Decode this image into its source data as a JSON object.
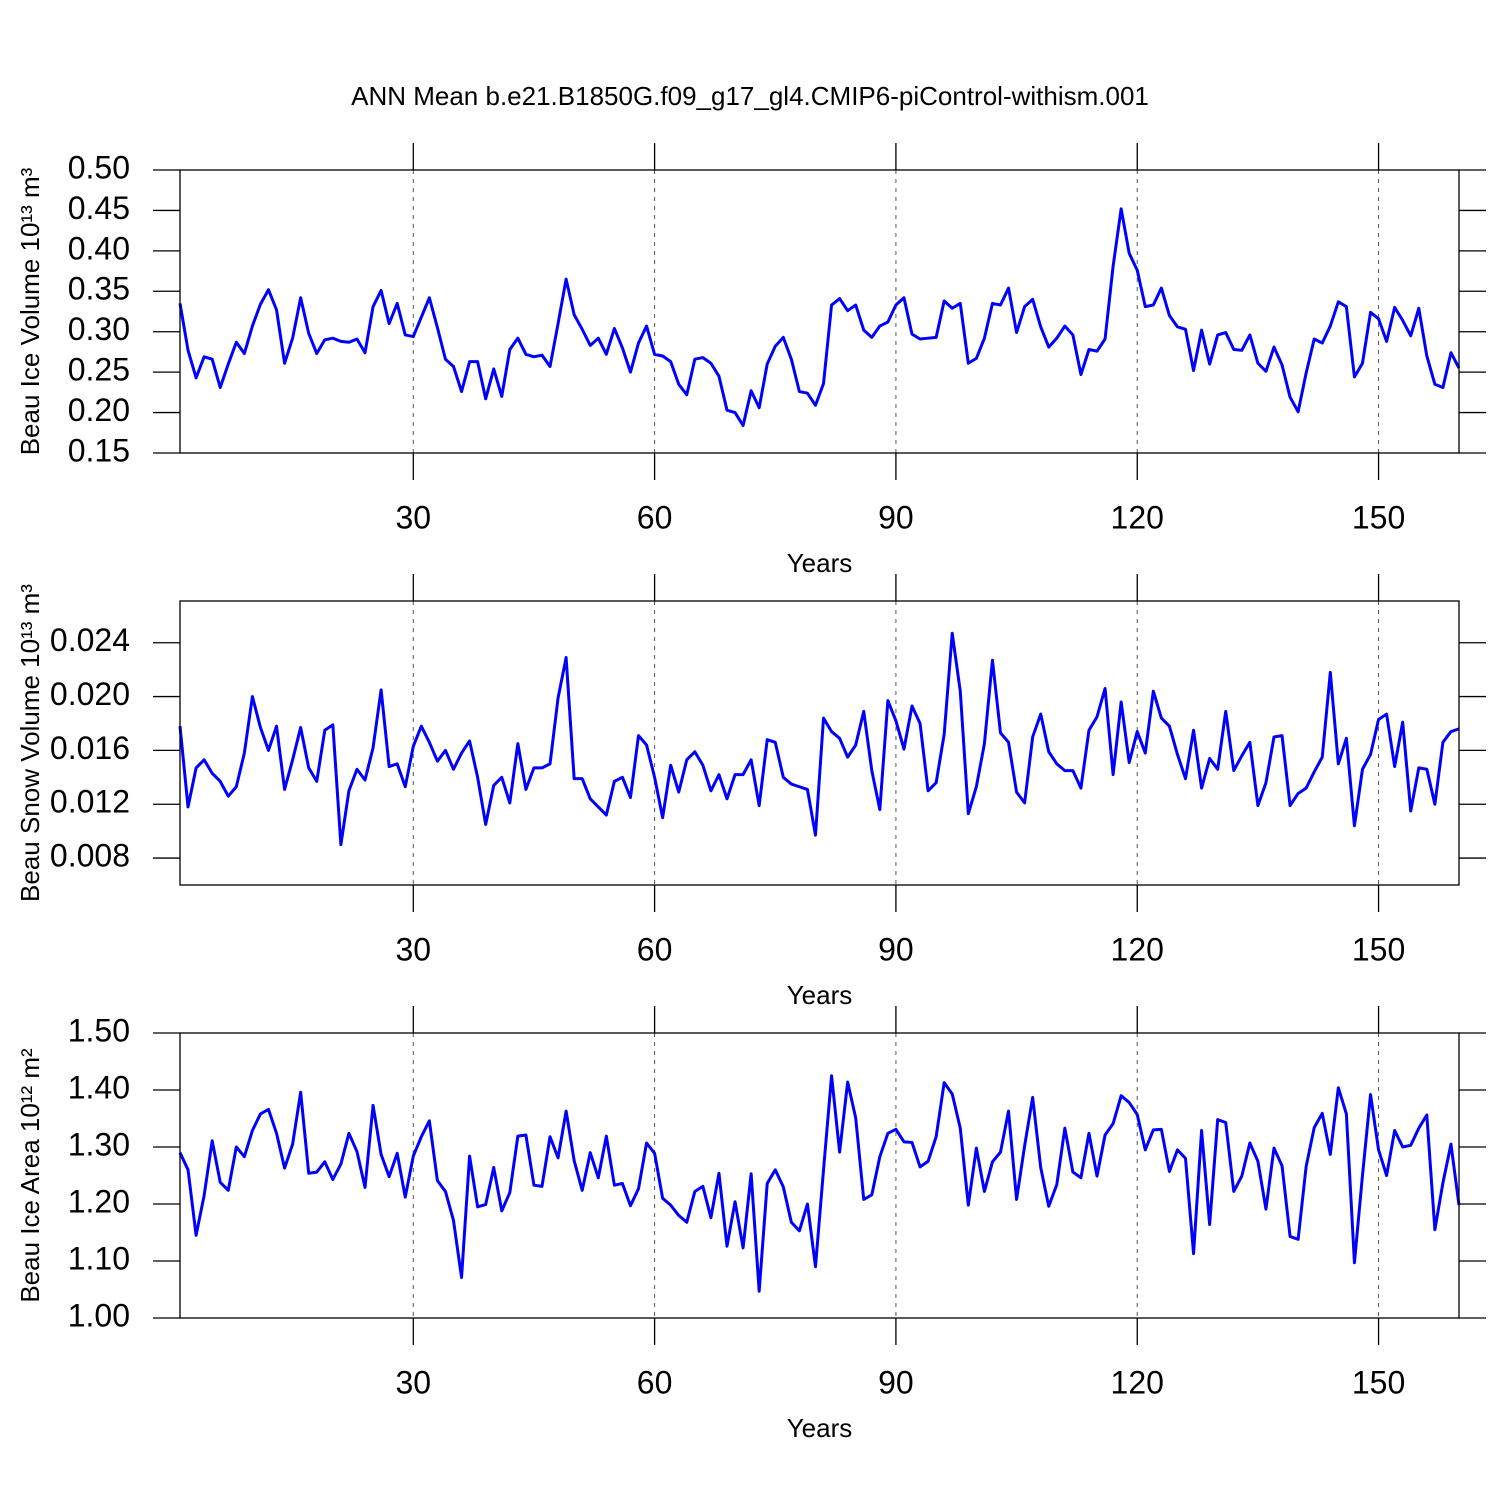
{
  "title": "ANN Mean b.e21.B1850G.f09_g17_gl4.CMIP6-piControl-withism.001",
  "chart_data": [
    {
      "type": "line",
      "ylabel": "Beau Ice Volume 10¹³ m³",
      "xlabel": "Years",
      "color": "#0000ff",
      "xlim": [
        1,
        160
      ],
      "xticks": [
        30,
        60,
        90,
        120,
        150
      ],
      "grid": true,
      "ylim": [
        0.15,
        0.5
      ],
      "yticks": [
        0.15,
        {
          "value": 0.2,
          "label": "0.20"
        },
        0.25,
        {
          "value": 0.3,
          "label": "0.30"
        },
        0.35,
        {
          "value": 0.4,
          "label": "0.40"
        },
        0.45,
        {
          "value": 0.5,
          "label": "0.50"
        }
      ],
      "x": [
        1,
        2,
        3,
        4,
        5,
        6,
        7,
        8,
        9,
        10,
        11,
        12,
        13,
        14,
        15,
        16,
        17,
        18,
        19,
        20,
        21,
        22,
        23,
        24,
        25,
        26,
        27,
        28,
        29,
        30,
        31,
        32,
        33,
        34,
        35,
        36,
        37,
        38,
        39,
        40,
        41,
        42,
        43,
        44,
        45,
        46,
        47,
        48,
        49,
        50,
        51,
        52,
        53,
        54,
        55,
        56,
        57,
        58,
        59,
        60,
        61,
        62,
        63,
        64,
        65,
        66,
        67,
        68,
        69,
        70,
        71,
        72,
        73,
        74,
        75,
        76,
        77,
        78,
        79,
        80,
        81,
        82,
        83,
        84,
        85,
        86,
        87,
        88,
        89,
        90,
        91,
        92,
        93,
        94,
        95,
        96,
        97,
        98,
        99,
        100,
        101,
        102,
        103,
        104,
        105,
        106,
        107,
        108,
        109,
        110,
        111,
        112,
        113,
        114,
        115,
        116,
        117,
        118,
        119,
        120,
        121,
        122,
        123,
        124,
        125,
        126,
        127,
        128,
        129,
        130,
        131,
        132,
        133,
        134,
        135,
        136,
        137,
        138,
        139,
        140,
        141,
        142,
        143,
        144,
        145,
        146,
        147,
        148,
        149,
        150,
        151,
        152,
        153,
        154,
        155,
        156,
        157,
        158,
        159,
        160
      ],
      "values": [
        0.335,
        0.277,
        0.243,
        0.269,
        0.266,
        0.231,
        0.26,
        0.287,
        0.273,
        0.307,
        0.334,
        0.352,
        0.327,
        0.261,
        0.292,
        0.342,
        0.298,
        0.273,
        0.29,
        0.292,
        0.288,
        0.287,
        0.291,
        0.274,
        0.331,
        0.351,
        0.31,
        0.335,
        0.296,
        0.294,
        0.318,
        0.342,
        0.305,
        0.266,
        0.257,
        0.226,
        0.263,
        0.263,
        0.217,
        0.254,
        0.22,
        0.278,
        0.292,
        0.272,
        0.269,
        0.271,
        0.257,
        0.31,
        0.365,
        0.321,
        0.303,
        0.283,
        0.292,
        0.272,
        0.304,
        0.28,
        0.25,
        0.286,
        0.307,
        0.272,
        0.27,
        0.263,
        0.235,
        0.222,
        0.266,
        0.268,
        0.261,
        0.245,
        0.203,
        0.2,
        0.184,
        0.227,
        0.206,
        0.26,
        0.282,
        0.293,
        0.266,
        0.226,
        0.224,
        0.209,
        0.236,
        0.333,
        0.341,
        0.326,
        0.333,
        0.302,
        0.293,
        0.307,
        0.312,
        0.333,
        0.342,
        0.297,
        0.291,
        0.292,
        0.293,
        0.338,
        0.329,
        0.335,
        0.261,
        0.267,
        0.292,
        0.335,
        0.333,
        0.354,
        0.299,
        0.331,
        0.34,
        0.306,
        0.281,
        0.292,
        0.307,
        0.296,
        0.247,
        0.278,
        0.276,
        0.291,
        0.381,
        0.452,
        0.397,
        0.376,
        0.331,
        0.333,
        0.354,
        0.32,
        0.306,
        0.303,
        0.252,
        0.302,
        0.26,
        0.296,
        0.299,
        0.278,
        0.277,
        0.296,
        0.261,
        0.251,
        0.281,
        0.259,
        0.219,
        0.201,
        0.249,
        0.291,
        0.286,
        0.307,
        0.337,
        0.331,
        0.244,
        0.261,
        0.324,
        0.316,
        0.288,
        0.33,
        0.314,
        0.295,
        0.329,
        0.27,
        0.235,
        0.231,
        0.274,
        0.255
      ]
    },
    {
      "type": "line",
      "ylabel": "Beau Snow Volume 10¹³ m³",
      "xlabel": "Years",
      "color": "#0000ff",
      "xlim": [
        1,
        160
      ],
      "xticks": [
        30,
        60,
        90,
        120,
        150
      ],
      "grid": true,
      "ylim": [
        0.006,
        0.0271
      ],
      "yticks": [
        0.008,
        0.012,
        0.016,
        {
          "value": 0.02,
          "label": "0.020"
        },
        0.024
      ],
      "x": [
        1,
        2,
        3,
        4,
        5,
        6,
        7,
        8,
        9,
        10,
        11,
        12,
        13,
        14,
        15,
        16,
        17,
        18,
        19,
        20,
        21,
        22,
        23,
        24,
        25,
        26,
        27,
        28,
        29,
        30,
        31,
        32,
        33,
        34,
        35,
        36,
        37,
        38,
        39,
        40,
        41,
        42,
        43,
        44,
        45,
        46,
        47,
        48,
        49,
        50,
        51,
        52,
        53,
        54,
        55,
        56,
        57,
        58,
        59,
        60,
        61,
        62,
        63,
        64,
        65,
        66,
        67,
        68,
        69,
        70,
        71,
        72,
        73,
        74,
        75,
        76,
        77,
        78,
        79,
        80,
        81,
        82,
        83,
        84,
        85,
        86,
        87,
        88,
        89,
        90,
        91,
        92,
        93,
        94,
        95,
        96,
        97,
        98,
        99,
        100,
        101,
        102,
        103,
        104,
        105,
        106,
        107,
        108,
        109,
        110,
        111,
        112,
        113,
        114,
        115,
        116,
        117,
        118,
        119,
        120,
        121,
        122,
        123,
        124,
        125,
        126,
        127,
        128,
        129,
        130,
        131,
        132,
        133,
        134,
        135,
        136,
        137,
        138,
        139,
        140,
        141,
        142,
        143,
        144,
        145,
        146,
        147,
        148,
        149,
        150,
        151,
        152,
        153,
        154,
        155,
        156,
        157,
        158,
        159,
        160
      ],
      "values": [
        0.0178,
        0.0118,
        0.0147,
        0.0153,
        0.0143,
        0.0137,
        0.0126,
        0.0133,
        0.0158,
        0.02,
        0.0177,
        0.016,
        0.0178,
        0.0131,
        0.0153,
        0.0177,
        0.0147,
        0.0137,
        0.0175,
        0.0179,
        0.009,
        0.013,
        0.0146,
        0.0138,
        0.0162,
        0.0205,
        0.0148,
        0.015,
        0.0133,
        0.0163,
        0.0178,
        0.0166,
        0.0152,
        0.016,
        0.0146,
        0.0158,
        0.0167,
        0.014,
        0.0105,
        0.0134,
        0.014,
        0.0121,
        0.0165,
        0.0131,
        0.0147,
        0.0147,
        0.015,
        0.0199,
        0.0229,
        0.0139,
        0.0139,
        0.0124,
        0.0118,
        0.0112,
        0.0137,
        0.014,
        0.0125,
        0.0171,
        0.0164,
        0.014,
        0.011,
        0.0149,
        0.0129,
        0.0153,
        0.0159,
        0.0149,
        0.013,
        0.0142,
        0.0124,
        0.0142,
        0.0142,
        0.0153,
        0.0119,
        0.0168,
        0.0166,
        0.014,
        0.0135,
        0.0133,
        0.0131,
        0.0097,
        0.0184,
        0.0174,
        0.0169,
        0.0155,
        0.0164,
        0.0189,
        0.0145,
        0.0116,
        0.0197,
        0.0182,
        0.0161,
        0.0193,
        0.018,
        0.013,
        0.0136,
        0.0172,
        0.0247,
        0.0204,
        0.0113,
        0.0133,
        0.0165,
        0.0227,
        0.0173,
        0.0166,
        0.0129,
        0.0121,
        0.017,
        0.0187,
        0.0159,
        0.015,
        0.0145,
        0.0145,
        0.0132,
        0.0175,
        0.0185,
        0.0206,
        0.0142,
        0.0196,
        0.0151,
        0.0174,
        0.0158,
        0.0204,
        0.0184,
        0.0178,
        0.0157,
        0.0139,
        0.0175,
        0.0132,
        0.0154,
        0.0146,
        0.0189,
        0.0145,
        0.0156,
        0.0166,
        0.0119,
        0.0136,
        0.017,
        0.0171,
        0.0119,
        0.0128,
        0.0132,
        0.0144,
        0.0155,
        0.0218,
        0.015,
        0.0169,
        0.0104,
        0.0146,
        0.0157,
        0.0183,
        0.0187,
        0.0148,
        0.0181,
        0.0115,
        0.0147,
        0.0146,
        0.012,
        0.0166,
        0.0174,
        0.0176
      ]
    },
    {
      "type": "line",
      "ylabel": "Beau Ice Area 10¹² m²",
      "xlabel": "Years",
      "color": "#0000ff",
      "xlim": [
        1,
        160
      ],
      "xticks": [
        30,
        60,
        90,
        120,
        150
      ],
      "grid": true,
      "ylim": [
        1.0,
        1.5
      ],
      "yticks": [
        {
          "value": 1.0,
          "label": "1.00"
        },
        {
          "value": 1.1,
          "label": "1.10"
        },
        {
          "value": 1.2,
          "label": "1.20"
        },
        {
          "value": 1.3,
          "label": "1.30"
        },
        {
          "value": 1.4,
          "label": "1.40"
        },
        {
          "value": 1.5,
          "label": "1.50"
        }
      ],
      "x": [
        1,
        2,
        3,
        4,
        5,
        6,
        7,
        8,
        9,
        10,
        11,
        12,
        13,
        14,
        15,
        16,
        17,
        18,
        19,
        20,
        21,
        22,
        23,
        24,
        25,
        26,
        27,
        28,
        29,
        30,
        31,
        32,
        33,
        34,
        35,
        36,
        37,
        38,
        39,
        40,
        41,
        42,
        43,
        44,
        45,
        46,
        47,
        48,
        49,
        50,
        51,
        52,
        53,
        54,
        55,
        56,
        57,
        58,
        59,
        60,
        61,
        62,
        63,
        64,
        65,
        66,
        67,
        68,
        69,
        70,
        71,
        72,
        73,
        74,
        75,
        76,
        77,
        78,
        79,
        80,
        81,
        82,
        83,
        84,
        85,
        86,
        87,
        88,
        89,
        90,
        91,
        92,
        93,
        94,
        95,
        96,
        97,
        98,
        99,
        100,
        101,
        102,
        103,
        104,
        105,
        106,
        107,
        108,
        109,
        110,
        111,
        112,
        113,
        114,
        115,
        116,
        117,
        118,
        119,
        120,
        121,
        122,
        123,
        124,
        125,
        126,
        127,
        128,
        129,
        130,
        131,
        132,
        133,
        134,
        135,
        136,
        137,
        138,
        139,
        140,
        141,
        142,
        143,
        144,
        145,
        146,
        147,
        148,
        149,
        150,
        151,
        152,
        153,
        154,
        155,
        156,
        157,
        158,
        159,
        160
      ],
      "values": [
        1.29,
        1.26,
        1.145,
        1.215,
        1.311,
        1.238,
        1.224,
        1.3,
        1.283,
        1.329,
        1.358,
        1.366,
        1.324,
        1.263,
        1.305,
        1.396,
        1.254,
        1.256,
        1.274,
        1.243,
        1.27,
        1.324,
        1.292,
        1.229,
        1.373,
        1.287,
        1.248,
        1.289,
        1.212,
        1.284,
        1.318,
        1.346,
        1.241,
        1.222,
        1.171,
        1.071,
        1.284,
        1.195,
        1.199,
        1.264,
        1.188,
        1.22,
        1.319,
        1.321,
        1.233,
        1.231,
        1.318,
        1.281,
        1.363,
        1.276,
        1.224,
        1.29,
        1.246,
        1.319,
        1.233,
        1.236,
        1.197,
        1.227,
        1.307,
        1.289,
        1.21,
        1.198,
        1.18,
        1.168,
        1.222,
        1.231,
        1.176,
        1.254,
        1.126,
        1.204,
        1.123,
        1.253,
        1.047,
        1.236,
        1.26,
        1.23,
        1.168,
        1.153,
        1.2,
        1.09,
        1.26,
        1.425,
        1.291,
        1.414,
        1.351,
        1.208,
        1.216,
        1.283,
        1.324,
        1.331,
        1.309,
        1.308,
        1.265,
        1.275,
        1.318,
        1.413,
        1.393,
        1.333,
        1.198,
        1.298,
        1.222,
        1.274,
        1.291,
        1.363,
        1.208,
        1.302,
        1.387,
        1.264,
        1.196,
        1.234,
        1.333,
        1.256,
        1.246,
        1.324,
        1.249,
        1.321,
        1.341,
        1.39,
        1.378,
        1.357,
        1.295,
        1.33,
        1.331,
        1.257,
        1.295,
        1.28,
        1.113,
        1.329,
        1.164,
        1.348,
        1.343,
        1.222,
        1.249,
        1.307,
        1.275,
        1.191,
        1.298,
        1.267,
        1.143,
        1.138,
        1.266,
        1.334,
        1.359,
        1.287,
        1.404,
        1.358,
        1.097,
        1.25,
        1.392,
        1.295,
        1.25,
        1.329,
        1.3,
        1.303,
        1.333,
        1.356,
        1.155,
        1.237,
        1.305,
        1.198
      ]
    }
  ]
}
